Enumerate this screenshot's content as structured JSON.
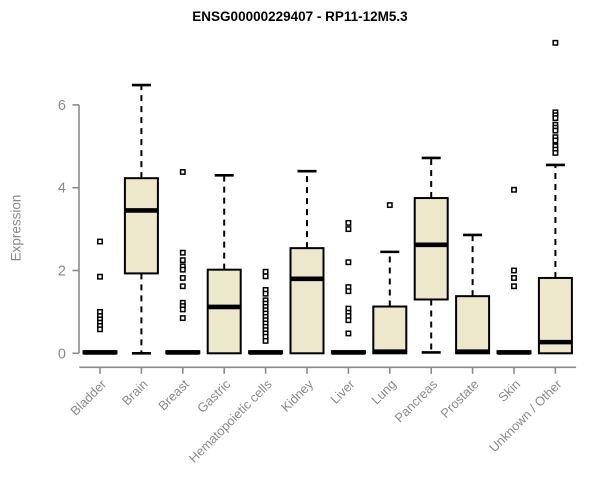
{
  "title": "ENSG00000229407 - RP11-12M5.3",
  "chart_data": {
    "type": "boxplot",
    "title": "ENSG00000229407 - RP11-12M5.3",
    "ylabel": "Expression",
    "yticks": [
      0,
      2,
      4,
      6
    ],
    "ylim": [
      0,
      6
    ],
    "grid": false,
    "legend": "none",
    "categories": [
      "Bladder",
      "Brain",
      "Breast",
      "Gastric",
      "Hematopoietic cells",
      "Kidney",
      "Liver",
      "Lung",
      "Pancreas",
      "Prostate",
      "Skin",
      "Unknown / Other"
    ],
    "series": [
      {
        "category": "Bladder",
        "whisker_low": 0,
        "q1": 0,
        "median": 0.02,
        "q3": 0.05,
        "whisker_high": 0.05,
        "outliers": [
          2.7,
          1.85,
          1.0,
          0.9,
          0.82,
          0.74,
          0.66,
          0.58
        ]
      },
      {
        "category": "Brain",
        "whisker_low": 0,
        "q1": 1.93,
        "median": 3.45,
        "q3": 4.23,
        "whisker_high": 6.48,
        "outliers": []
      },
      {
        "category": "Breast",
        "whisker_low": 0,
        "q1": 0,
        "median": 0.02,
        "q3": 0.05,
        "whisker_high": 0.05,
        "outliers": [
          4.38,
          2.43,
          2.25,
          2.1,
          2.02,
          1.82,
          1.62,
          1.22,
          1.14,
          1.06,
          0.85
        ]
      },
      {
        "category": "Gastric",
        "whisker_low": 0,
        "q1": 0,
        "median": 1.12,
        "q3": 2.02,
        "whisker_high": 4.3,
        "outliers": []
      },
      {
        "category": "Hematopoietic cells",
        "whisker_low": 0,
        "q1": 0,
        "median": 0.02,
        "q3": 0.05,
        "whisker_high": 0.05,
        "outliers": [
          1.97,
          1.86,
          1.53,
          1.44,
          1.28,
          1.2,
          1.12,
          1.04,
          0.96,
          0.88,
          0.8,
          0.72,
          0.64,
          0.56,
          0.48,
          0.4,
          0.3
        ]
      },
      {
        "category": "Kidney",
        "whisker_low": 0,
        "q1": 0,
        "median": 1.8,
        "q3": 2.54,
        "whisker_high": 4.4,
        "outliers": []
      },
      {
        "category": "Liver",
        "whisker_low": 0,
        "q1": 0,
        "median": 0.02,
        "q3": 0.05,
        "whisker_high": 0.05,
        "outliers": [
          3.15,
          3.0,
          2.2,
          1.6,
          1.5,
          1.08,
          0.98,
          0.9,
          0.8,
          0.48
        ]
      },
      {
        "category": "Lung",
        "whisker_low": 0,
        "q1": 0,
        "median": 0.04,
        "q3": 1.13,
        "whisker_high": 2.45,
        "outliers": [
          3.58
        ]
      },
      {
        "category": "Pancreas",
        "whisker_low": 0.02,
        "q1": 1.3,
        "median": 2.62,
        "q3": 3.75,
        "whisker_high": 4.72,
        "outliers": []
      },
      {
        "category": "Prostate",
        "whisker_low": 0,
        "q1": 0,
        "median": 0.04,
        "q3": 1.38,
        "whisker_high": 2.86,
        "outliers": []
      },
      {
        "category": "Skin",
        "whisker_low": 0,
        "q1": 0,
        "median": 0.02,
        "q3": 0.05,
        "whisker_high": 0.05,
        "outliers": [
          3.95,
          2.0,
          1.82,
          1.62
        ]
      },
      {
        "category": "Unknown / Other",
        "whisker_low": 0,
        "q1": 0,
        "median": 0.27,
        "q3": 1.82,
        "whisker_high": 4.55,
        "outliers": [
          7.5,
          5.82,
          5.75,
          5.68,
          5.52,
          5.45,
          5.38,
          5.22,
          5.14,
          5.0,
          4.92,
          4.84
        ]
      }
    ],
    "colors": {
      "box_fill": "#EDE7CB",
      "box_border": "#000000",
      "median": "#000000",
      "whisker": "#000000",
      "outlier_stroke": "#000000",
      "outlier_fill": "#ffffff",
      "axis": "#8a8a8a",
      "tick_label": "#8a8a8a",
      "title": "#000000",
      "background": "#ffffff"
    }
  }
}
